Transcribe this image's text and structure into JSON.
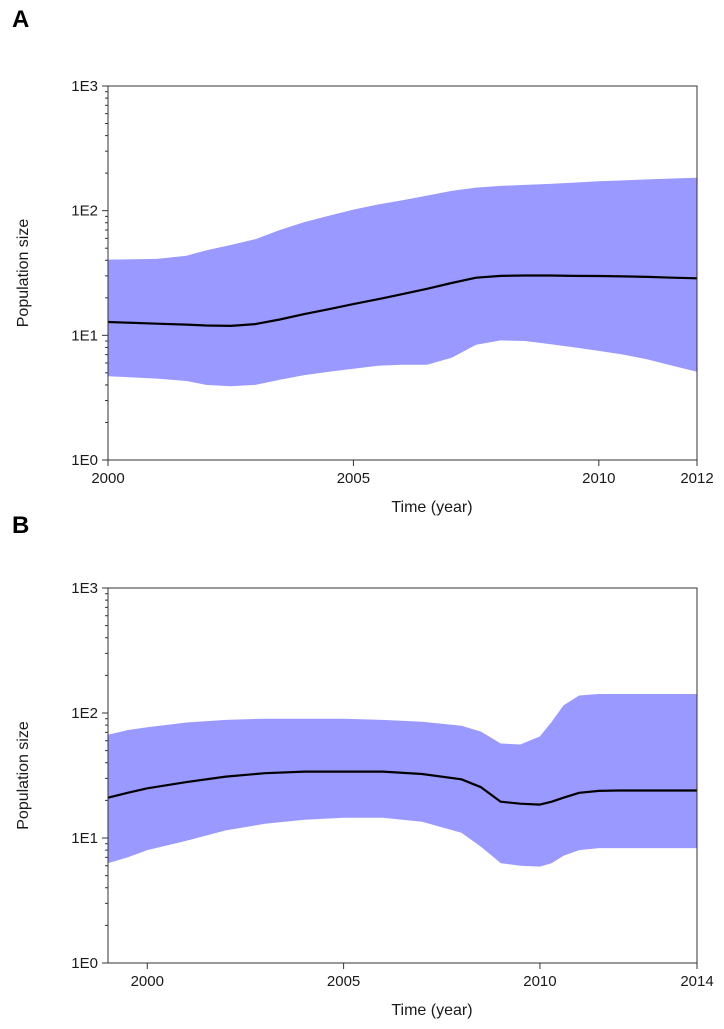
{
  "panels": [
    {
      "label": "A"
    },
    {
      "label": "B"
    }
  ],
  "colors": {
    "band": "#9999ff",
    "median": "#000000",
    "axis": "#333333"
  },
  "chart_data": [
    {
      "type": "area",
      "panel": "A",
      "xlabel": "Time (year)",
      "ylabel": "Population size",
      "yscale": "log",
      "xlim": [
        2000,
        2012
      ],
      "ylim": [
        1,
        1000
      ],
      "xticks": [
        2000,
        2005,
        2010,
        2012
      ],
      "xtick_labels": [
        "2000",
        "2005",
        "2010",
        "2012"
      ],
      "yticks": [
        1,
        10,
        100,
        1000
      ],
      "ytick_labels": [
        "1E0",
        "1E1",
        "1E2",
        "1E3"
      ],
      "grid": false,
      "x": [
        2000,
        2001,
        2001.6,
        2002,
        2002.5,
        2003,
        2003.5,
        2004,
        2004.5,
        2005,
        2005.5,
        2006,
        2006.5,
        2007,
        2007.5,
        2008,
        2008.5,
        2009,
        2009.5,
        2010,
        2010.5,
        2011,
        2011.5,
        2012
      ],
      "series": [
        {
          "role": "median",
          "values": [
            12.8,
            12.4,
            12.2,
            12.0,
            11.9,
            12.3,
            13.4,
            14.8,
            16.2,
            17.8,
            19.5,
            21.4,
            23.6,
            26.3,
            29.0,
            30.0,
            30.2,
            30.2,
            30.0,
            29.9,
            29.7,
            29.4,
            29.0,
            28.7
          ]
        },
        {
          "role": "upper_95_hpd",
          "values": [
            40.5,
            41.0,
            43.5,
            48.0,
            53.0,
            59.0,
            70.0,
            81.0,
            91.0,
            102.0,
            112.0,
            121.0,
            132.0,
            144.0,
            153.0,
            158.0,
            161.0,
            164.0,
            168.0,
            172.0,
            175.0,
            178.0,
            181.0,
            184.0
          ]
        },
        {
          "role": "lower_95_hpd",
          "values": [
            4.7,
            4.5,
            4.3,
            4.0,
            3.9,
            4.0,
            4.4,
            4.8,
            5.1,
            5.4,
            5.7,
            5.8,
            5.8,
            6.6,
            8.4,
            9.1,
            9.0,
            8.5,
            8.0,
            7.5,
            7.0,
            6.4,
            5.7,
            5.1
          ]
        }
      ]
    },
    {
      "type": "area",
      "panel": "B",
      "xlabel": "Time (year)",
      "ylabel": "Population size",
      "yscale": "log",
      "xlim": [
        1999,
        2014
      ],
      "ylim": [
        1,
        1000
      ],
      "xticks": [
        2000,
        2005,
        2010,
        2014
      ],
      "xtick_labels": [
        "2000",
        "2005",
        "2010",
        "2014"
      ],
      "yticks": [
        1,
        10,
        100,
        1000
      ],
      "ytick_labels": [
        "1E0",
        "1E1",
        "1E2",
        "1E3"
      ],
      "grid": false,
      "x": [
        1999,
        1999.5,
        2000,
        2001,
        2002,
        2003,
        2004,
        2005,
        2006,
        2007,
        2008,
        2008.5,
        2009,
        2009.5,
        2010,
        2010.3,
        2010.6,
        2011,
        2011.5,
        2012,
        2013,
        2014
      ],
      "series": [
        {
          "role": "median",
          "values": [
            21.0,
            23.0,
            25.0,
            28.0,
            31.0,
            33.0,
            34.0,
            34.0,
            34.0,
            32.5,
            29.5,
            25.5,
            19.5,
            18.8,
            18.5,
            19.5,
            21.0,
            23.0,
            23.8,
            24.0,
            24.0,
            24.0
          ]
        },
        {
          "role": "upper_95_hpd",
          "values": [
            67.0,
            73.0,
            77.0,
            84.0,
            88.0,
            90.0,
            90.0,
            90.0,
            88.0,
            85.0,
            79.0,
            71.0,
            57.0,
            56.0,
            65.0,
            85.0,
            115.0,
            138.0,
            142.0,
            142.0,
            142.0,
            142.0
          ]
        },
        {
          "role": "lower_95_hpd",
          "values": [
            6.3,
            7.0,
            8.0,
            9.5,
            11.5,
            13.0,
            14.0,
            14.5,
            14.5,
            13.5,
            11.0,
            8.5,
            6.3,
            6.0,
            5.9,
            6.3,
            7.2,
            8.0,
            8.3,
            8.3,
            8.3,
            8.3
          ]
        }
      ]
    }
  ]
}
